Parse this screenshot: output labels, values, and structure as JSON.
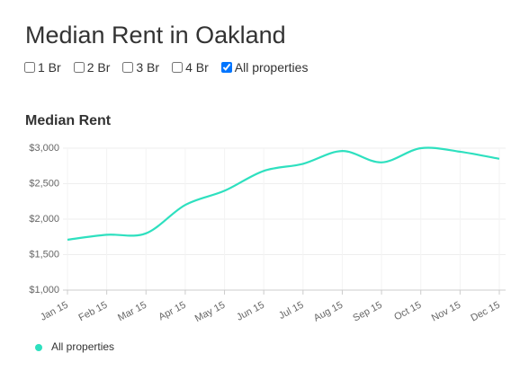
{
  "header": {
    "title": "Median Rent in Oakland"
  },
  "filters": [
    {
      "label": "1 Br",
      "checked": false
    },
    {
      "label": "2 Br",
      "checked": false
    },
    {
      "label": "3 Br",
      "checked": false
    },
    {
      "label": "4 Br",
      "checked": false
    },
    {
      "label": "All properties",
      "checked": true
    }
  ],
  "chart_data": {
    "type": "line",
    "title": "Median Rent",
    "categories": [
      "Jan 15",
      "Feb 15",
      "Mar 15",
      "Apr 15",
      "May 15",
      "Jun 15",
      "Jul 15",
      "Aug 15",
      "Sep 15",
      "Oct 15",
      "Nov 15",
      "Dec 15"
    ],
    "series": [
      {
        "name": "All properties",
        "color": "#2ee0bf",
        "values": [
          1710,
          1780,
          1800,
          2200,
          2400,
          2680,
          2780,
          2960,
          2800,
          3000,
          2950,
          2850
        ]
      }
    ],
    "ylim": [
      1000,
      3000
    ],
    "yticks": [
      {
        "value": 1000,
        "label": "$1,000"
      },
      {
        "value": 1500,
        "label": "$1,500"
      },
      {
        "value": 2000,
        "label": "$2,000"
      },
      {
        "value": 2500,
        "label": "$2,500"
      },
      {
        "value": 3000,
        "label": "$3,000"
      }
    ],
    "grid": true,
    "legend": "bottom-left"
  }
}
